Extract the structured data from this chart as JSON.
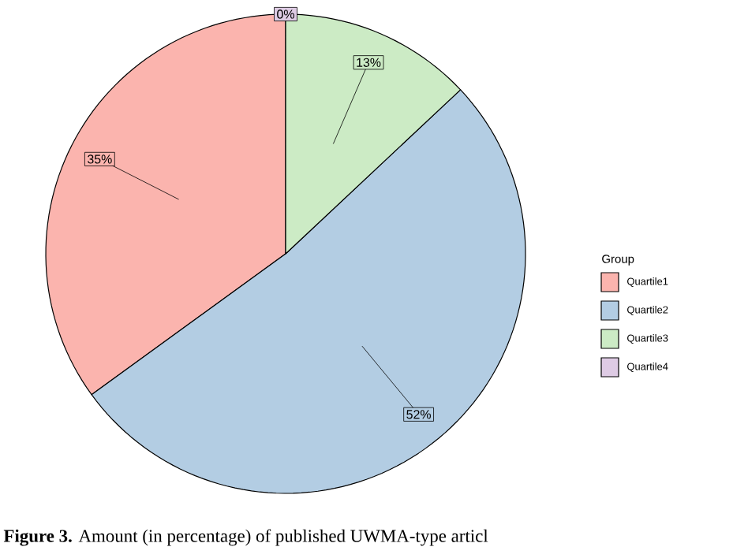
{
  "chart_data": {
    "type": "pie",
    "categories": [
      "Quartile1",
      "Quartile2",
      "Quartile3",
      "Quartile4"
    ],
    "values": [
      35,
      52,
      13,
      0
    ],
    "colors": [
      "#fbb4ae",
      "#b3cde3",
      "#ccebc5",
      "#decbe4"
    ],
    "value_labels": [
      "35%",
      "52%",
      "13%",
      "0%"
    ],
    "legend": "right",
    "legend_title": "Group",
    "annotations": [
      "**Figure 3.** Amount (in percentage) of published UWMA-type articl"
    ]
  }
}
